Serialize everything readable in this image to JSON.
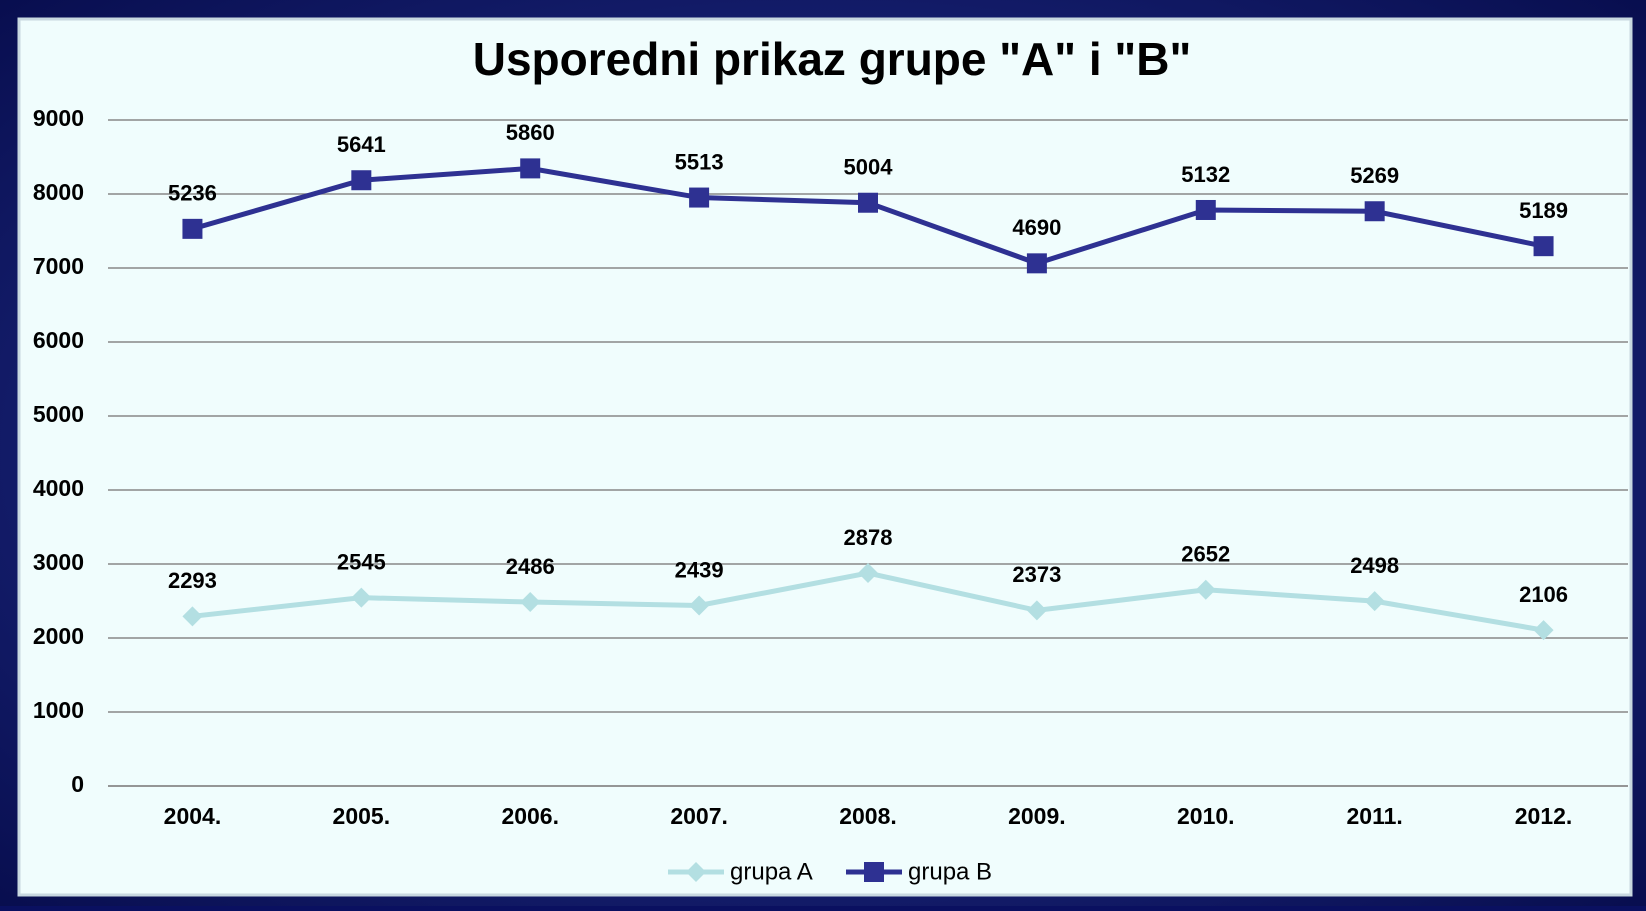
{
  "chart_data": {
    "type": "line",
    "stacked": true,
    "title": "Usporedni prikaz grupe \"A\" i \"B\"",
    "categories": [
      "2004.",
      "2005.",
      "2006.",
      "2007.",
      "2008.",
      "2009.",
      "2010.",
      "2011.",
      "2012."
    ],
    "series": [
      {
        "name": "grupa A",
        "color": "#b3dfe2",
        "marker": "diamond",
        "values": [
          2293,
          2545,
          2486,
          2439,
          2878,
          2373,
          2652,
          2498,
          2106
        ]
      },
      {
        "name": "grupa B",
        "color": "#2e3192",
        "marker": "square",
        "values": [
          5236,
          5641,
          5860,
          5513,
          5004,
          4690,
          5132,
          5269,
          5189
        ]
      }
    ],
    "ylim": [
      0,
      9000
    ],
    "yticks": [
      0,
      1000,
      2000,
      3000,
      4000,
      5000,
      6000,
      7000,
      8000,
      9000
    ],
    "grid": true,
    "legend": "bottom"
  }
}
